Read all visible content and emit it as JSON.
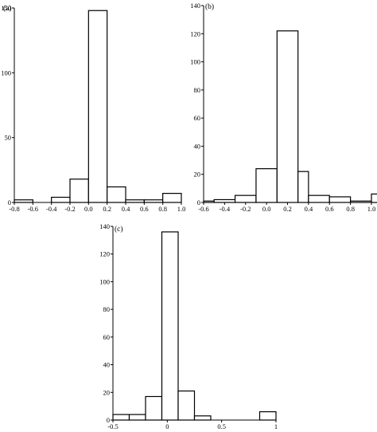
{
  "chart_data": [
    {
      "panel_label": "(a)",
      "type": "bar",
      "xlim": [
        -0.8,
        1.0
      ],
      "ylim": [
        0,
        150
      ],
      "xticks": [
        -0.8,
        -0.6,
        -0.4,
        -0.2,
        0.0,
        0.2,
        0.4,
        0.6,
        0.8,
        1.0
      ],
      "xtick_labels": [
        "-0.8",
        "-0.6",
        "-0.4",
        "-0.2",
        "0.0",
        "0.2",
        "0.4",
        "0.6",
        "0.8",
        "1.0"
      ],
      "yticks": [
        0,
        50,
        100,
        150
      ],
      "ytick_labels": [
        "0",
        "50",
        "100",
        "150"
      ],
      "bins": [
        {
          "x0": -0.8,
          "x1": -0.6,
          "value": 2
        },
        {
          "x0": -0.6,
          "x1": -0.4,
          "value": 0
        },
        {
          "x0": -0.4,
          "x1": -0.2,
          "value": 4
        },
        {
          "x0": -0.2,
          "x1": 0.0,
          "value": 18
        },
        {
          "x0": 0.0,
          "x1": 0.2,
          "value": 148
        },
        {
          "x0": 0.2,
          "x1": 0.4,
          "value": 12
        },
        {
          "x0": 0.4,
          "x1": 0.6,
          "value": 2
        },
        {
          "x0": 0.6,
          "x1": 0.8,
          "value": 2
        },
        {
          "x0": 0.8,
          "x1": 1.0,
          "value": 7
        }
      ]
    },
    {
      "panel_label": "(b)",
      "type": "bar",
      "xlim": [
        -0.6,
        1.0
      ],
      "ylim": [
        0,
        140
      ],
      "xticks": [
        -0.6,
        -0.4,
        -0.2,
        0.0,
        0.2,
        0.4,
        0.6,
        0.8,
        1.0
      ],
      "xtick_labels": [
        "-0.6",
        "-0.4",
        "-0.2",
        "0.0",
        "0.2",
        "0.4",
        "0.6",
        "0.8",
        "1.0"
      ],
      "yticks": [
        0,
        20,
        40,
        60,
        80,
        100,
        120,
        140
      ],
      "ytick_labels": [
        "0",
        "20",
        "40",
        "60",
        "80",
        "100",
        "120",
        "140"
      ],
      "bins": [
        {
          "x0": -0.6,
          "x1": -0.5,
          "value": 1
        },
        {
          "x0": -0.5,
          "x1": -0.3,
          "value": 2
        },
        {
          "x0": -0.3,
          "x1": -0.1,
          "value": 5
        },
        {
          "x0": -0.1,
          "x1": 0.1,
          "value": 24
        },
        {
          "x0": 0.1,
          "x1": 0.3,
          "value": 122
        },
        {
          "x0": 0.3,
          "x1": 0.4,
          "value": 22
        },
        {
          "x0": 0.4,
          "x1": 0.6,
          "value": 5
        },
        {
          "x0": 0.6,
          "x1": 0.8,
          "value": 4
        },
        {
          "x0": 0.8,
          "x1": 1.0,
          "value": 1
        },
        {
          "x0": 1.0,
          "x1": 1.1,
          "value": 6
        }
      ]
    },
    {
      "panel_label": "(c)",
      "type": "bar",
      "xlim": [
        -0.5,
        1.0
      ],
      "ylim": [
        0,
        140
      ],
      "xticks": [
        -0.5,
        0.0,
        0.5,
        1.0
      ],
      "xtick_labels": [
        "-0.5",
        "0",
        "0.5",
        "1"
      ],
      "yticks": [
        0,
        20,
        40,
        60,
        80,
        100,
        120,
        140
      ],
      "ytick_labels": [
        "0",
        "20",
        "40",
        "60",
        "80",
        "100",
        "120",
        "140"
      ],
      "bins": [
        {
          "x0": -0.5,
          "x1": -0.35,
          "value": 4
        },
        {
          "x0": -0.35,
          "x1": -0.2,
          "value": 4
        },
        {
          "x0": -0.2,
          "x1": -0.05,
          "value": 17
        },
        {
          "x0": -0.05,
          "x1": 0.1,
          "value": 136
        },
        {
          "x0": 0.1,
          "x1": 0.25,
          "value": 21
        },
        {
          "x0": 0.25,
          "x1": 0.4,
          "value": 3
        },
        {
          "x0": 0.4,
          "x1": 0.55,
          "value": 0
        },
        {
          "x0": 0.55,
          "x1": 0.7,
          "value": 0
        },
        {
          "x0": 0.7,
          "x1": 0.85,
          "value": 0
        },
        {
          "x0": 0.85,
          "x1": 1.0,
          "value": 6
        }
      ]
    }
  ]
}
